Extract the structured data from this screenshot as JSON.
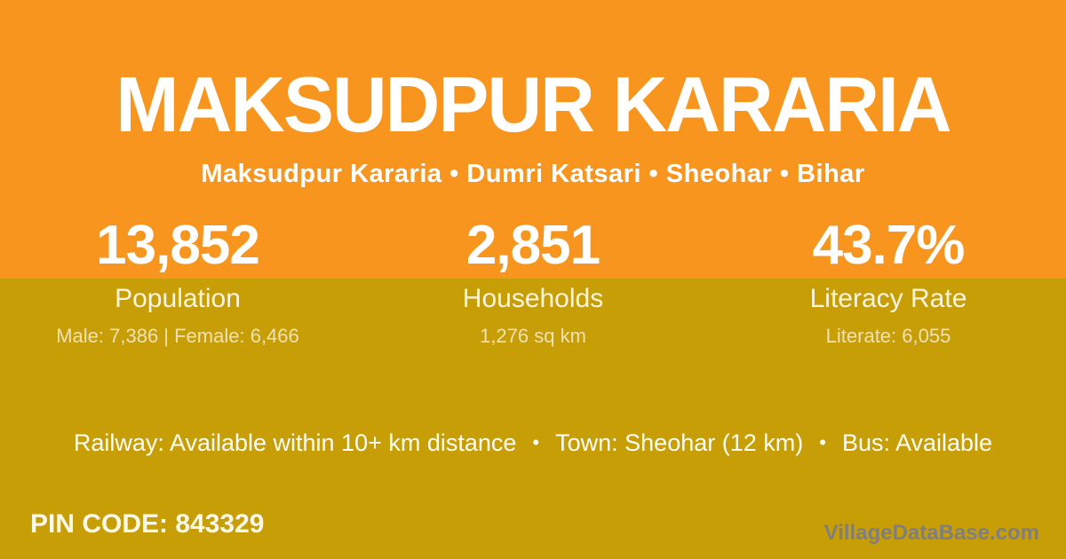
{
  "colors": {
    "top_band_orange": "#F8951E",
    "bottom_band_mustard": "#C79E06",
    "title_white": "#FFFFFF",
    "label_cream": "#FDF5E0",
    "detail_cream": "#EFE1B4",
    "watermark_gray": "#7F7F7F"
  },
  "header": {
    "title": "MAKSUDPUR KARARIA",
    "breadcrumb": "Maksudpur Kararia • Dumri Katsari • Sheohar • Bihar"
  },
  "stats": [
    {
      "value": "13,852",
      "label": "Population",
      "detail": "Male: 7,386 | Female: 6,466"
    },
    {
      "value": "2,851",
      "label": "Households",
      "detail": "1,276 sq km"
    },
    {
      "value": "43.7%",
      "label": "Literacy Rate",
      "detail": "Literate: 6,055"
    }
  ],
  "info": {
    "separator": "•",
    "items": [
      "Railway: Available within 10+ km distance",
      "Town: Sheohar (12 km)",
      "Bus: Available"
    ]
  },
  "footer": {
    "pin_code": "PIN CODE: 843329",
    "watermark": "VillageDataBase.com"
  }
}
